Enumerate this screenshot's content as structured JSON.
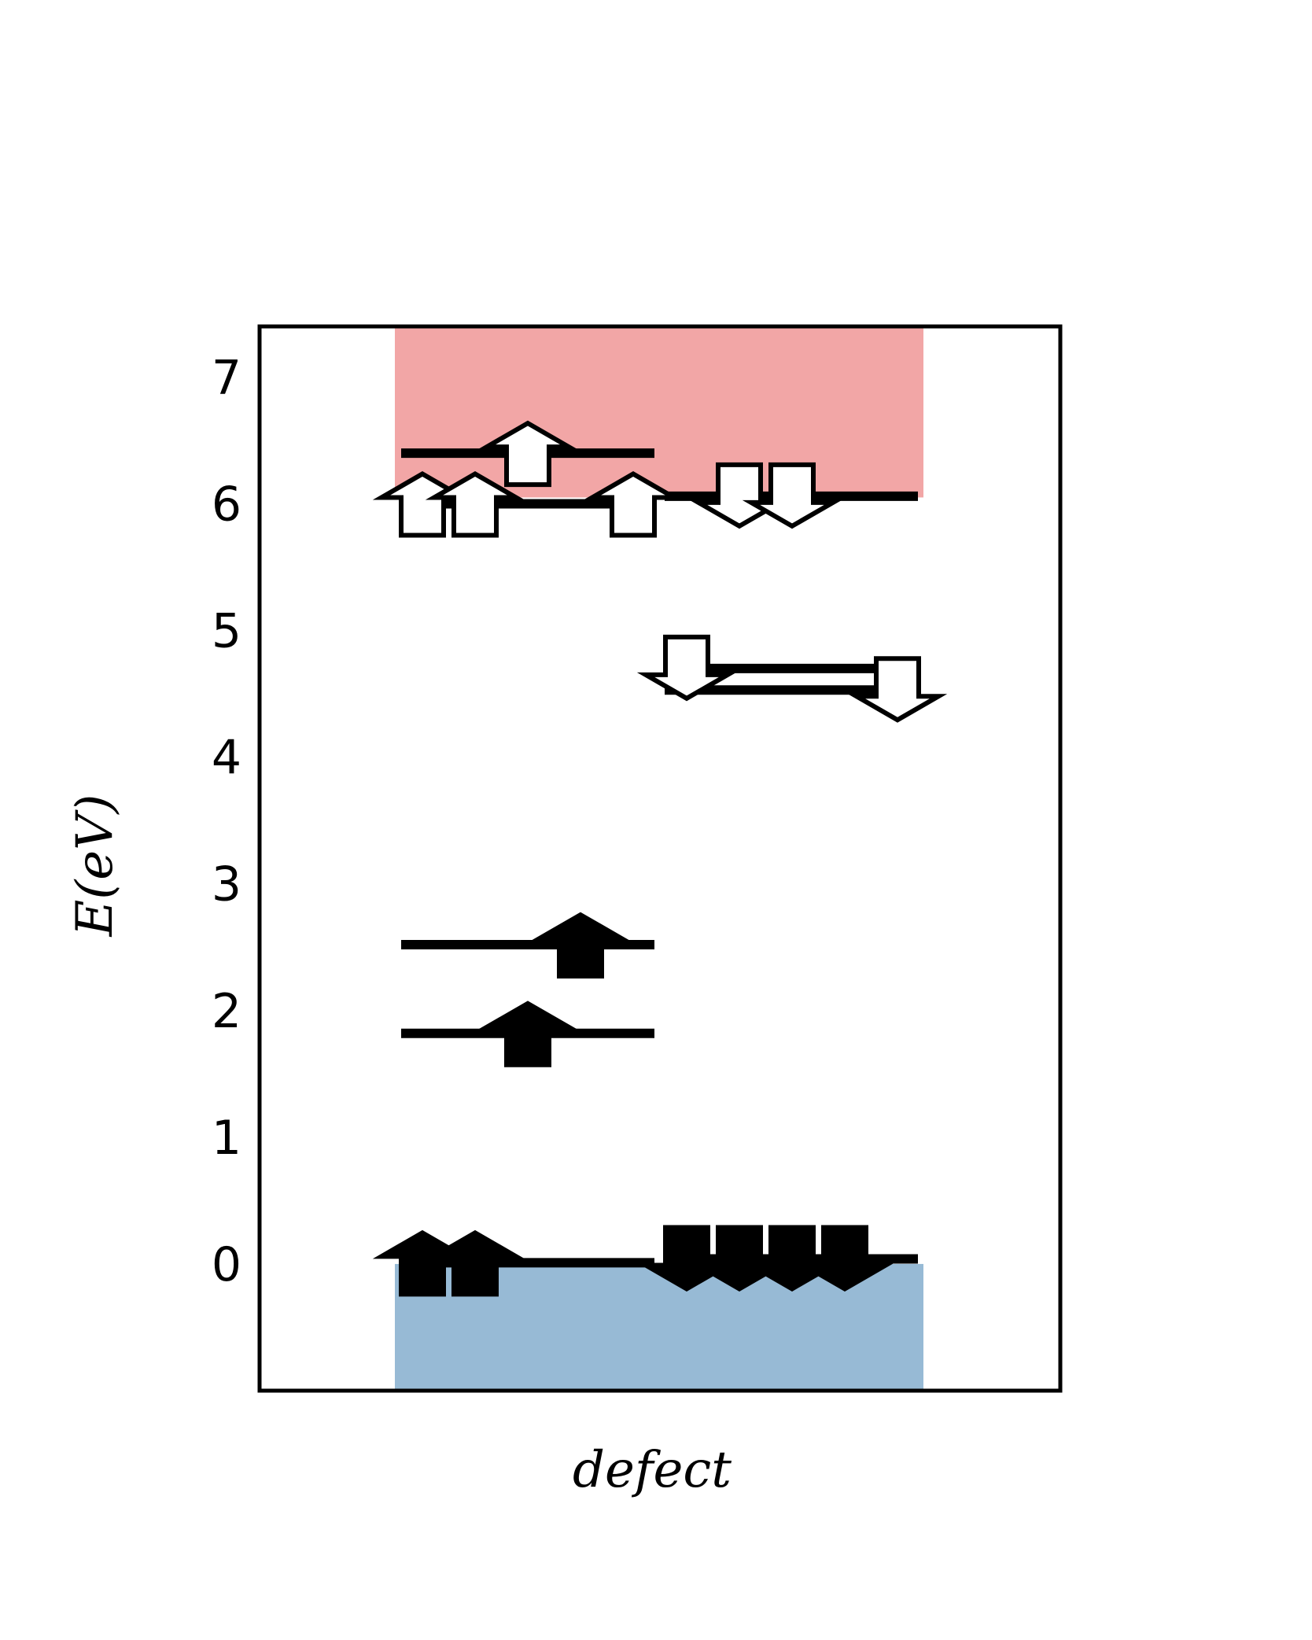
{
  "chart_data": {
    "type": "energy-level-diagram",
    "title": "",
    "xlabel": "defect",
    "ylabel": "E(eV)",
    "ylim": [
      -1.0,
      7.4
    ],
    "yticks": [
      0,
      1,
      2,
      3,
      4,
      5,
      6,
      7
    ],
    "bands": {
      "valence_band": {
        "from": -1.0,
        "to": 0.0,
        "color": "#97bad5"
      },
      "conduction_band": {
        "from": 6.05,
        "to": 7.4,
        "color": "#f2a6a6"
      }
    },
    "spin_channels": [
      "up",
      "down"
    ],
    "levels": [
      {
        "spin": "up",
        "energy": 0.01,
        "occupied": true,
        "electrons": 2
      },
      {
        "spin": "up",
        "energy": 1.82,
        "occupied": true,
        "electrons": 1
      },
      {
        "spin": "up",
        "energy": 2.52,
        "occupied": true,
        "electrons": 1
      },
      {
        "spin": "up",
        "energy": 6.0,
        "occupied": false,
        "electrons": 3
      },
      {
        "spin": "up",
        "energy": 6.4,
        "occupied": false,
        "electrons": 1
      },
      {
        "spin": "down",
        "energy": 0.04,
        "occupied": true,
        "electrons": 4
      },
      {
        "spin": "down",
        "energy": 4.53,
        "occupied": false,
        "electrons": 1
      },
      {
        "spin": "down",
        "energy": 4.7,
        "occupied": false,
        "electrons": 1
      },
      {
        "spin": "down",
        "energy": 6.06,
        "occupied": false,
        "electrons": 2
      }
    ]
  }
}
